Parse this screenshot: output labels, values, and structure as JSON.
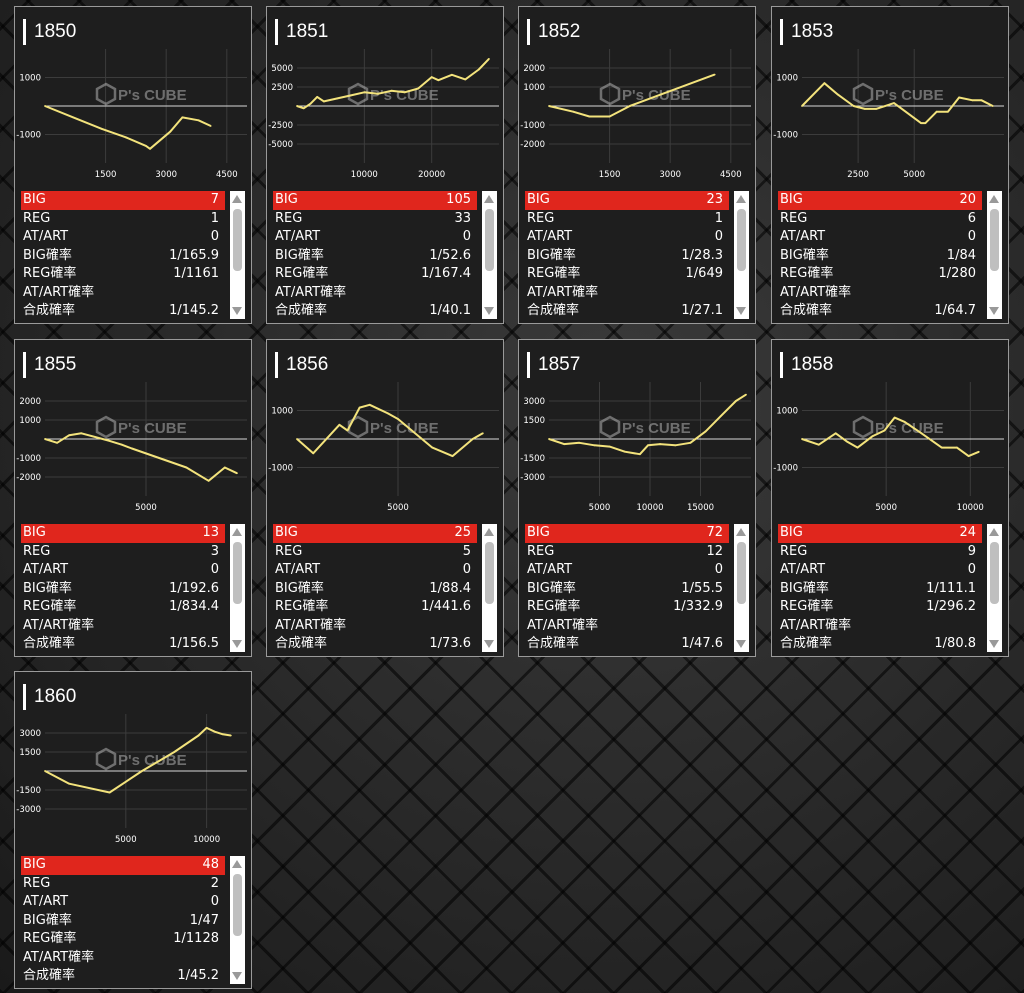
{
  "stat_labels": {
    "big": "BIG",
    "reg": "REG",
    "at_art": "AT/ART",
    "big_prob": "BIG確率",
    "reg_prob": "REG確率",
    "at_art_prob": "AT/ART確率",
    "combined_prob": "合成確率"
  },
  "watermark": {
    "brand": "P's CUBE"
  },
  "colors": {
    "line": "#f3e37c",
    "big_row": "#e0261d",
    "card_bg": "#1e1e1e"
  },
  "machines": [
    {
      "number": "1850",
      "big": "7",
      "reg": "1",
      "at_art": "0",
      "big_prob": "1/165.9",
      "reg_prob": "1/1161",
      "at_art_prob": "",
      "combined_prob": "1/145.2",
      "chart_data": {
        "type": "line",
        "xlim": [
          0,
          5000
        ],
        "ylim": [
          -2000,
          2000
        ],
        "x_ticks": [
          1500,
          3000,
          4500
        ],
        "y_ticks": [
          1000,
          -1000
        ],
        "x": [
          0,
          700,
          1400,
          2000,
          2500,
          2600,
          3100,
          3400,
          3800,
          4100
        ],
        "y": [
          0,
          -400,
          -800,
          -1100,
          -1400,
          -1500,
          -900,
          -400,
          -500,
          -700
        ]
      }
    },
    {
      "number": "1851",
      "big": "105",
      "reg": "33",
      "at_art": "0",
      "big_prob": "1/52.6",
      "reg_prob": "1/167.4",
      "at_art_prob": "",
      "combined_prob": "1/40.1",
      "chart_data": {
        "type": "line",
        "xlim": [
          0,
          30000
        ],
        "ylim": [
          -7500,
          7500
        ],
        "x_ticks": [
          10000,
          20000
        ],
        "y_ticks": [
          5000,
          2500,
          -2500,
          -5000
        ],
        "x": [
          0,
          1000,
          2000,
          3000,
          4000,
          6000,
          8000,
          10000,
          12000,
          14000,
          16000,
          18000,
          20000,
          21000,
          23000,
          25000,
          27000,
          28500
        ],
        "y": [
          0,
          -300,
          300,
          1200,
          600,
          1000,
          1400,
          1800,
          1600,
          2000,
          1800,
          2300,
          3800,
          3400,
          4100,
          3500,
          4800,
          6200
        ]
      }
    },
    {
      "number": "1852",
      "big": "23",
      "reg": "1",
      "at_art": "0",
      "big_prob": "1/28.3",
      "reg_prob": "1/649",
      "at_art_prob": "",
      "combined_prob": "1/27.1",
      "chart_data": {
        "type": "line",
        "xlim": [
          0,
          5000
        ],
        "ylim": [
          -3000,
          3000
        ],
        "x_ticks": [
          1500,
          3000,
          4500
        ],
        "y_ticks": [
          2000,
          1000,
          -1000,
          -2000
        ],
        "x": [
          0,
          600,
          1000,
          1500,
          2000,
          4100
        ],
        "y": [
          0,
          -300,
          -550,
          -550,
          0,
          1650
        ]
      }
    },
    {
      "number": "1853",
      "big": "20",
      "reg": "6",
      "at_art": "0",
      "big_prob": "1/84",
      "reg_prob": "1/280",
      "at_art_prob": "",
      "combined_prob": "1/64.7",
      "chart_data": {
        "type": "line",
        "xlim": [
          0,
          9000
        ],
        "ylim": [
          -2000,
          2000
        ],
        "x_ticks": [
          2500,
          5000
        ],
        "y_ticks": [
          1000,
          -1000
        ],
        "x": [
          0,
          1000,
          1600,
          2300,
          2800,
          3300,
          4100,
          5300,
          5500,
          6000,
          6500,
          7000,
          7600,
          8000,
          8500
        ],
        "y": [
          0,
          800,
          400,
          0,
          -100,
          -100,
          100,
          -600,
          -600,
          -200,
          -200,
          300,
          200,
          200,
          0
        ]
      }
    },
    {
      "number": "1855",
      "big": "13",
      "reg": "3",
      "at_art": "0",
      "big_prob": "1/192.6",
      "reg_prob": "1/834.4",
      "at_art_prob": "",
      "combined_prob": "1/156.5",
      "chart_data": {
        "type": "line",
        "xlim": [
          0,
          10000
        ],
        "ylim": [
          -3000,
          3000
        ],
        "x_ticks": [
          5000
        ],
        "y_ticks": [
          2000,
          1000,
          -1000,
          -2000
        ],
        "x": [
          0,
          600,
          1200,
          1800,
          3200,
          3800,
          4300,
          7000,
          8100,
          8900,
          9500
        ],
        "y": [
          0,
          -200,
          200,
          300,
          -100,
          -300,
          -500,
          -1500,
          -2200,
          -1500,
          -1800
        ]
      }
    },
    {
      "number": "1856",
      "big": "25",
      "reg": "5",
      "at_art": "0",
      "big_prob": "1/88.4",
      "reg_prob": "1/441.6",
      "at_art_prob": "",
      "combined_prob": "1/73.6",
      "chart_data": {
        "type": "line",
        "xlim": [
          0,
          10000
        ],
        "ylim": [
          -2000,
          2000
        ],
        "x_ticks": [
          5000
        ],
        "y_ticks": [
          1000,
          -1000
        ],
        "x": [
          0,
          800,
          2100,
          2500,
          3100,
          3600,
          4500,
          5000,
          6700,
          7700,
          8700,
          9200
        ],
        "y": [
          0,
          -500,
          500,
          300,
          1100,
          1200,
          900,
          700,
          -300,
          -600,
          0,
          200
        ]
      }
    },
    {
      "number": "1857",
      "big": "72",
      "reg": "12",
      "at_art": "0",
      "big_prob": "1/55.5",
      "reg_prob": "1/332.9",
      "at_art_prob": "",
      "combined_prob": "1/47.6",
      "chart_data": {
        "type": "line",
        "xlim": [
          0,
          20000
        ],
        "ylim": [
          -4500,
          4500
        ],
        "x_ticks": [
          5000,
          10000,
          15000
        ],
        "y_ticks": [
          3000,
          1500,
          -1500,
          -3000
        ],
        "x": [
          0,
          1500,
          3000,
          4500,
          6000,
          7500,
          9000,
          9800,
          11000,
          12500,
          14000,
          15500,
          17000,
          18500,
          19500
        ],
        "y": [
          0,
          -400,
          -300,
          -500,
          -600,
          -1000,
          -1200,
          -500,
          -400,
          -500,
          -300,
          600,
          1800,
          3000,
          3500
        ]
      }
    },
    {
      "number": "1858",
      "big": "24",
      "reg": "9",
      "at_art": "0",
      "big_prob": "1/111.1",
      "reg_prob": "1/296.2",
      "at_art_prob": "",
      "combined_prob": "1/80.8",
      "chart_data": {
        "type": "line",
        "xlim": [
          0,
          12000
        ],
        "ylim": [
          -2000,
          2000
        ],
        "x_ticks": [
          5000,
          10000
        ],
        "y_ticks": [
          1000,
          -1000
        ],
        "x": [
          0,
          1000,
          2000,
          2700,
          3300,
          4200,
          4900,
          5500,
          6100,
          7100,
          8300,
          9200,
          9900,
          10500
        ],
        "y": [
          0,
          -200,
          200,
          -100,
          -300,
          100,
          300,
          750,
          600,
          200,
          -300,
          -300,
          -600,
          -450
        ]
      }
    },
    {
      "number": "1860",
      "big": "48",
      "reg": "2",
      "at_art": "0",
      "big_prob": "1/47",
      "reg_prob": "1/1128",
      "at_art_prob": "",
      "combined_prob": "1/45.2",
      "chart_data": {
        "type": "line",
        "xlim": [
          0,
          12500
        ],
        "ylim": [
          -4500,
          4500
        ],
        "x_ticks": [
          5000,
          10000
        ],
        "y_ticks": [
          3000,
          1500,
          -1500,
          -3000
        ],
        "x": [
          0,
          1500,
          4000,
          6000,
          8000,
          9500,
          10000,
          10500,
          11000,
          11500
        ],
        "y": [
          0,
          -1000,
          -1700,
          0,
          1500,
          2800,
          3400,
          3100,
          2900,
          2800
        ]
      }
    }
  ]
}
